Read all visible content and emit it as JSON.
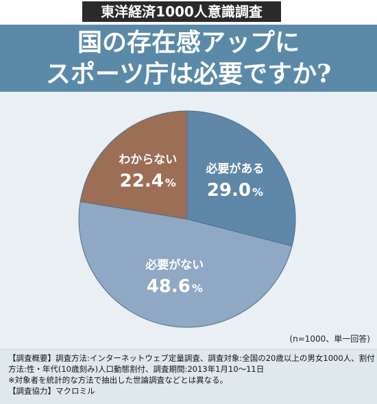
{
  "header": {
    "badge": "東洋経済1000人意識調査",
    "title_line1": "国の存在感アップに",
    "title_line2": "スポーツ庁は必要ですか?"
  },
  "colors": {
    "title_band": "#5b8aa8",
    "chart_bg": "#e9eff3",
    "slice_need": "#5f88a8",
    "slice_noneed": "#8fa8c3",
    "slice_unknown": "#9c6e55"
  },
  "chart_data": {
    "type": "pie",
    "slices": [
      {
        "label": "必要がある",
        "value": 29.0,
        "value_text": "29.0",
        "unit": "%",
        "color": "#5f88a8"
      },
      {
        "label": "必要がない",
        "value": 48.6,
        "value_text": "48.6",
        "unit": "%",
        "color": "#8fa8c3"
      },
      {
        "label": "わからない",
        "value": 22.4,
        "value_text": "22.4",
        "unit": "%",
        "color": "#9c6e55"
      }
    ],
    "start_angle_deg": 0,
    "direction": "clockwise",
    "sample_note": "(n=1000、単一回答)"
  },
  "footnotes": {
    "line1": "【調査概要】調査方法:インターネットウェブ定量調査、調査対象:全国の20歳以上の男女1000人、割付",
    "line2": "方法:性・年代(10歳刻み)人口動態割付、調査期間:2013年1月10～11日",
    "line3": "※対象者を統計的な方法で抽出した世論調査などとは異なる。",
    "line4": "【調査協力】マクロミル"
  }
}
